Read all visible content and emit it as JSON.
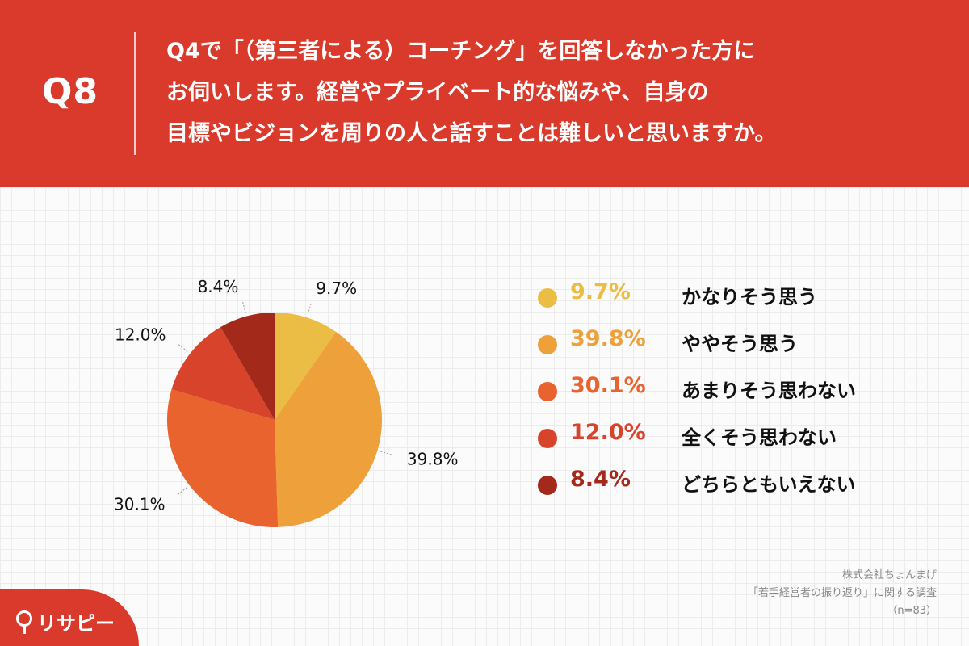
{
  "header": {
    "qnum": "Q8",
    "question_lines": [
      "Q4で「（第三者による）コーチング」を回答しなかった方に",
      "お伺いします。経営やプライベート的な悩みや、自身の",
      "目標やビジョンを周りの人と話すことは難しいと思いますか。"
    ]
  },
  "chart_data": {
    "type": "pie",
    "title": "",
    "slices": [
      {
        "label": "かなりそう思う",
        "value": 9.7,
        "display": "9.7%",
        "color": "#ecbd45"
      },
      {
        "label": "ややそう思う",
        "value": 39.8,
        "display": "39.8%",
        "color": "#eea03a"
      },
      {
        "label": "あまりそう思わない",
        "value": 30.1,
        "display": "30.1%",
        "color": "#e9632e"
      },
      {
        "label": "全くそう思わない",
        "value": 12.0,
        "display": "12.0%",
        "color": "#d8432b"
      },
      {
        "label": "どちらともいえない",
        "value": 8.4,
        "display": "8.4%",
        "color": "#a3291b"
      }
    ],
    "legend_position": "right"
  },
  "source": {
    "lines": [
      "株式会社ちょんまげ",
      "「若手経営者の振り返り」に関する調査",
      "（n=83）"
    ]
  },
  "logo": {
    "text": "リサピー",
    "icon": "pin-icon"
  },
  "colors": {
    "background": "#d93a2b",
    "panel": "#fbfbfb",
    "text": "#111111"
  }
}
